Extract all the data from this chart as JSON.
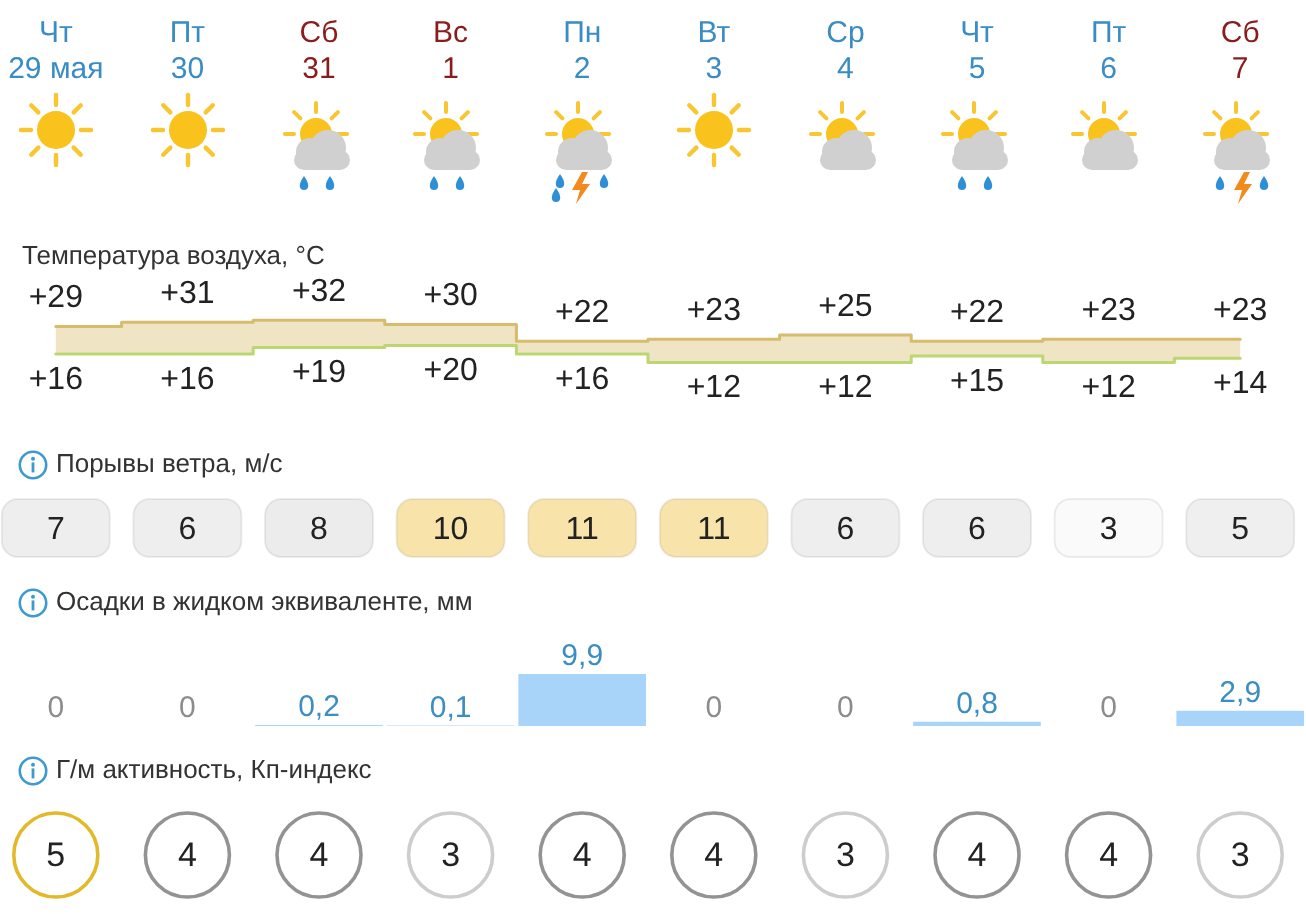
{
  "chart_data": [
    {
      "type": "step",
      "title": "Температура воздуха, °C",
      "categories": [
        "Чт 29 мая",
        "Пт 30",
        "Сб 31",
        "Вс 1",
        "Пн 2",
        "Вт 3",
        "Ср 4",
        "Чт 5",
        "Пт 6",
        "Сб 7"
      ],
      "tick_labels": "x",
      "series": [
        {
          "color": "#d6bc6c",
          "values": [
            29,
            31,
            32,
            30,
            22,
            23,
            25,
            22,
            23,
            23
          ],
          "value_labels": [
            "+29",
            "+31",
            "+32",
            "+30",
            "+22",
            "+23",
            "+25",
            "+22",
            "+23",
            "+23"
          ],
          "lower": [
            16,
            16,
            19,
            20,
            16,
            12,
            12,
            15,
            12,
            14
          ],
          "upper": [
            29,
            31,
            32,
            30,
            22,
            23,
            25,
            22,
            23,
            23
          ]
        },
        {
          "color": "#bcd772",
          "values": [
            16,
            16,
            19,
            20,
            16,
            12,
            12,
            15,
            12,
            14
          ],
          "value_labels": [
            "+16",
            "+16",
            "+19",
            "+20",
            "+16",
            "+12",
            "+12",
            "+15",
            "+12",
            "+14"
          ]
        }
      ]
    },
    {
      "type": "other",
      "title": "Порывы ветра, м/с",
      "categories": [
        null,
        null,
        null,
        null,
        null,
        null,
        null,
        null,
        null,
        null
      ],
      "data_labels": true,
      "values": [
        7,
        6,
        8,
        10,
        11,
        11,
        6,
        6,
        3,
        5
      ],
      "colors": [
        "#eeeeee",
        "#eeeeee",
        "#ececec",
        "#f8e4aa",
        "#f8e4aa",
        "#f8e4aa",
        "#eeeeee",
        "#eeeeee",
        "#fafafa",
        "#efefef"
      ]
    },
    {
      "type": "bar",
      "title": "Осадки в жидком эквиваленте, мм",
      "categories": [
        null,
        null,
        null,
        null,
        null,
        null,
        null,
        null,
        null,
        null
      ],
      "tick_labels": false,
      "color": "#a9d4f9",
      "values": [
        0,
        0,
        0.2,
        0.1,
        9.9,
        0,
        0,
        0.8,
        0,
        2.9
      ],
      "value_labels": [
        "0",
        "0",
        "0,2",
        "0,1",
        "9,9",
        "0",
        "0",
        "0,8",
        "0",
        "2,9"
      ]
    },
    {
      "type": "other",
      "title": "Г/м активность, Кп-индекс",
      "categories": [
        null,
        null,
        null,
        null,
        null,
        null,
        null,
        null,
        null,
        null
      ],
      "data_labels": true,
      "values": [
        5,
        4,
        4,
        3,
        4,
        4,
        3,
        4,
        4,
        3
      ],
      "colors": [
        "#e3b92c",
        "#939393",
        "#939393",
        "#cdcdcd",
        "#939393",
        "#939393",
        "#cdcdcd",
        "#939393",
        "#939393",
        "#cdcdcd"
      ]
    }
  ]
}
